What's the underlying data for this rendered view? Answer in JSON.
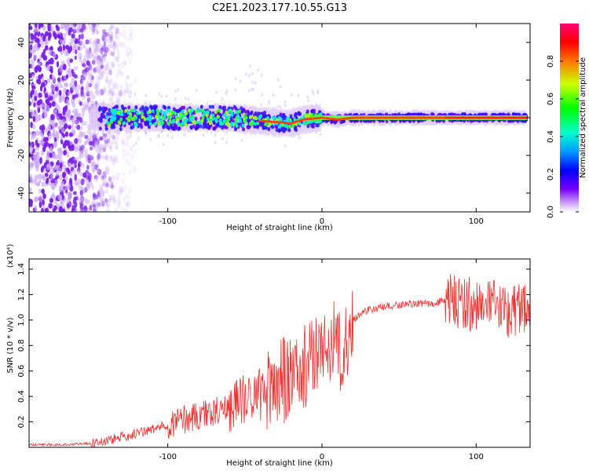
{
  "figure": {
    "title": "C2E1.2023.177.10.55.G13"
  },
  "chart_data": [
    {
      "type": "heatmap",
      "title": "C2E1.2023.177.10.55.G13",
      "xlabel": "Height of straight line (km)",
      "ylabel": "Frequency (Hz)",
      "xlim": [
        -190,
        135
      ],
      "ylim": [
        -50,
        50
      ],
      "xticks": [
        -100,
        0,
        100
      ],
      "yticks": [
        -40,
        -20,
        0,
        20,
        40
      ],
      "colorbar": {
        "label": "Normalized spectral amplitude",
        "range": [
          0,
          1
        ],
        "ticks": [
          0.0,
          0.2,
          0.4,
          0.6,
          0.8
        ]
      },
      "ridge": [
        {
          "height_km": -150,
          "freq_hz": 0
        },
        {
          "height_km": -100,
          "freq_hz": 0
        },
        {
          "height_km": -60,
          "freq_hz": 0
        },
        {
          "height_km": -35,
          "freq_hz": -2
        },
        {
          "height_km": -20,
          "freq_hz": -3
        },
        {
          "height_km": -12,
          "freq_hz": -1
        },
        {
          "height_km": 0,
          "freq_hz": 0
        },
        {
          "height_km": 10,
          "freq_hz": -1
        },
        {
          "height_km": 20,
          "freq_hz": 0
        },
        {
          "height_km": 130,
          "freq_hz": 0
        }
      ]
    },
    {
      "type": "line",
      "xlabel": "Height of straight line (km)",
      "ylabel": "SNR (10 * v/v)",
      "y_scale_label": "(x10⁴)",
      "xlim": [
        -190,
        135
      ],
      "ylim": [
        0,
        1.48
      ],
      "xticks": [
        -100,
        0,
        100
      ],
      "yticks": [
        0.2,
        0.4,
        0.6,
        0.8,
        1.0,
        1.2,
        1.4
      ],
      "color": "#ee3333",
      "series": [
        {
          "x": [
            -190,
            -170,
            -150,
            -140,
            -130,
            -120,
            -110,
            -100,
            -90,
            -80,
            -70,
            -60,
            -50,
            -40,
            -30,
            -20,
            -10,
            -5,
            0,
            5,
            8,
            10,
            12,
            15,
            20,
            25,
            30,
            40,
            50,
            60,
            70,
            80,
            90,
            100,
            110,
            120,
            130,
            135
          ],
          "values": [
            0.02,
            0.02,
            0.03,
            0.05,
            0.08,
            0.11,
            0.14,
            0.18,
            0.22,
            0.25,
            0.28,
            0.32,
            0.38,
            0.45,
            0.5,
            0.55,
            0.65,
            0.75,
            0.75,
            0.8,
            0.9,
            0.9,
            0.7,
            0.8,
            1.0,
            1.05,
            1.08,
            1.1,
            1.12,
            1.13,
            1.13,
            1.15,
            1.15,
            1.12,
            1.1,
            1.08,
            1.1,
            1.1
          ]
        }
      ]
    }
  ]
}
